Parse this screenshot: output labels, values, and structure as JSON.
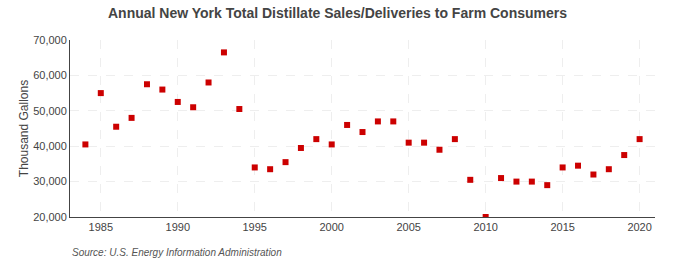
{
  "chart_data": {
    "type": "scatter",
    "title": "Annual New York Total Distillate Sales/Deliveries to Farm Consumers",
    "ylabel": "Thousand Gallons",
    "annotations": [
      "Source: U.S. Energy Information Administration"
    ],
    "x": [
      1984,
      1985,
      1986,
      1987,
      1988,
      1989,
      1990,
      1991,
      1992,
      1993,
      1994,
      1995,
      1996,
      1997,
      1998,
      1999,
      2000,
      2001,
      2002,
      2003,
      2004,
      2005,
      2006,
      2007,
      2008,
      2009,
      2010,
      2011,
      2012,
      2013,
      2014,
      2015,
      2016,
      2017,
      2018,
      2019,
      2020
    ],
    "values": [
      40500,
      55000,
      45500,
      48000,
      57500,
      56000,
      52500,
      51000,
      58000,
      66500,
      50500,
      34000,
      33500,
      35500,
      39500,
      42000,
      40500,
      46000,
      44000,
      47000,
      47000,
      41000,
      41000,
      39000,
      42000,
      30500,
      20000,
      31000,
      30000,
      30000,
      29000,
      34000,
      34500,
      32000,
      33500,
      37500,
      42000
    ],
    "color": "#CC0000",
    "marker": "square",
    "xlim": [
      1983,
      2021
    ],
    "ylim": [
      20000,
      70000
    ],
    "xticks": [
      1985,
      1990,
      1995,
      2000,
      2005,
      2010,
      2015,
      2020
    ],
    "yticks": [
      {
        "value": 20000,
        "label": "20,000"
      },
      {
        "value": 30000,
        "label": "30,000"
      },
      {
        "value": 40000,
        "label": "40,000"
      },
      {
        "value": 50000,
        "label": "50,000"
      },
      {
        "value": 60000,
        "label": "60,000"
      },
      {
        "value": 70000,
        "label": "70,000"
      }
    ],
    "grid": true
  }
}
